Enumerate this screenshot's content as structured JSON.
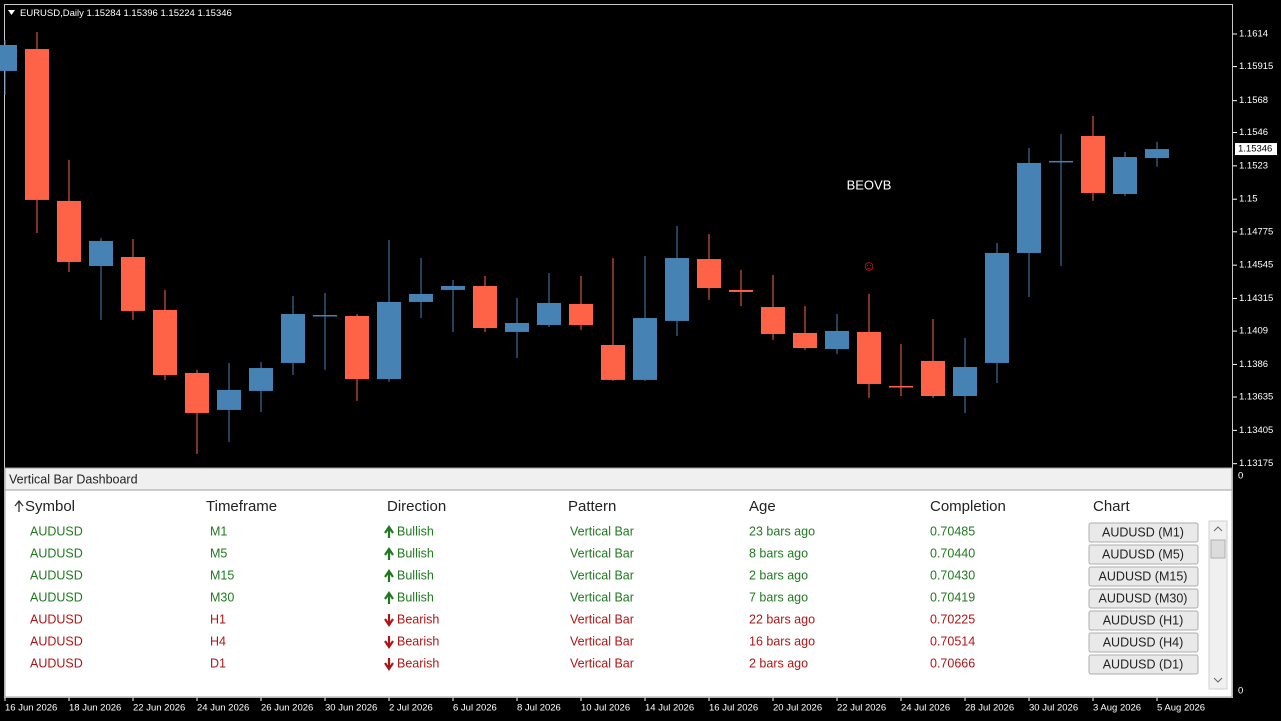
{
  "chart_data": {
    "type": "candlestick",
    "title": "EURUSD,Daily",
    "categories": [
      "16 Jun 2026",
      null,
      "18 Jun 2026",
      null,
      "22 Jun 2026",
      null,
      "24 Jun 2026",
      null,
      "26 Jun 2026",
      null,
      "30 Jun 2026",
      null,
      "2 Jul 2026",
      null,
      "6 Jul 2026",
      null,
      "8 Jul 2026",
      null,
      "10 Jul 2026",
      null,
      "14 Jul 2026",
      null,
      "16 Jul 2026",
      null,
      "20 Jul 2026",
      null,
      "22 Jul 2026",
      null,
      "24 Jul 2026",
      null,
      "28 Jul 2026",
      null,
      "30 Jul 2026",
      null,
      "3 Aug 2026",
      null,
      "5 Aug 2026"
    ],
    "open": [
      1.15885,
      1.16036,
      1.14988,
      1.14539,
      1.14601,
      1.14236,
      1.13801,
      1.13546,
      1.13677,
      1.1387,
      1.14194,
      1.14194,
      1.13759,
      1.14291,
      1.14374,
      1.14401,
      1.14084,
      1.14132,
      1.14277,
      1.13994,
      1.13753,
      1.1416,
      1.14587,
      1.14374,
      1.14256,
      1.14077,
      1.13966,
      1.14084,
      1.13711,
      1.13884,
      1.13642,
      1.1387,
      1.14629,
      1.15257,
      1.15436,
      1.15036,
      1.15284
    ],
    "high": [
      1.16099,
      1.16154,
      1.15271,
      1.14732,
      1.14725,
      1.14374,
      1.13822,
      1.1387,
      1.13877,
      1.14332,
      1.14353,
      1.14208,
      1.14719,
      1.14594,
      1.14443,
      1.1447,
      1.14318,
      1.14491,
      1.1447,
      1.14594,
      1.14608,
      1.14815,
      1.1476,
      1.14512,
      1.14477,
      1.14263,
      1.14208,
      1.14346,
      1.14001,
      1.14173,
      1.14042,
      1.14698,
      1.15353,
      1.1545,
      1.15574,
      1.15326,
      1.15396
    ],
    "low": [
      1.15719,
      1.14767,
      1.14498,
      1.14167,
      1.14167,
      1.13753,
      1.13242,
      1.13325,
      1.13532,
      1.13787,
      1.13822,
      1.13608,
      1.13739,
      1.1418,
      1.14084,
      1.14084,
      1.13904,
      1.14118,
      1.14098,
      1.13746,
      1.13746,
      1.14056,
      1.14305,
      1.14263,
      1.14029,
      1.1396,
      1.13932,
      1.13628,
      1.13642,
      1.13628,
      1.13525,
      1.13732,
      1.14325,
      1.14539,
      1.14988,
      1.15022,
      1.15224
    ],
    "close": [
      1.16064,
      1.14995,
      1.14567,
      1.14712,
      1.14229,
      1.13787,
      1.13525,
      1.13684,
      1.13835,
      1.14208,
      1.14201,
      1.13759,
      1.14291,
      1.14346,
      1.14401,
      1.14111,
      1.14146,
      1.14284,
      1.14132,
      1.13753,
      1.1418,
      1.14594,
      1.14387,
      1.1436,
      1.1407,
      1.13973,
      1.14091,
      1.13725,
      1.13704,
      1.13642,
      1.13842,
      1.14629,
      1.1525,
      1.15264,
      1.15043,
      1.15291,
      1.15346
    ],
    "up_color": "#4682b4",
    "down_color": "#ff6347",
    "ylim": [
      1.13159,
      1.1634
    ],
    "yticks": [
      1.1614,
      1.15915,
      1.1568,
      1.1546,
      1.1523,
      1.15,
      1.14775,
      1.14545,
      1.14315,
      1.1409,
      1.1386,
      1.13635,
      1.13405,
      1.13175
    ],
    "annotations": [
      "BEOVB",
      "☺"
    ],
    "panel_axis_labels": [
      "0",
      "0"
    ]
  },
  "dashboard": {
    "title": "Vertical Bar Dashboard",
    "columns": [
      "Symbol",
      "Timeframe",
      "Direction",
      "Pattern",
      "Age",
      "Completion",
      "Chart"
    ],
    "rows": [
      {
        "color": "#1f7a1f",
        "arrow": "up",
        "cells": [
          "AUDUSD",
          "M1",
          "Bullish",
          "Vertical Bar",
          "23 bars ago",
          "0.70485",
          "AUDUSD (M1)"
        ]
      },
      {
        "color": "#1f7a1f",
        "arrow": "up",
        "cells": [
          "AUDUSD",
          "M5",
          "Bullish",
          "Vertical Bar",
          "8 bars ago",
          "0.70440",
          "AUDUSD (M5)"
        ]
      },
      {
        "color": "#1f7a1f",
        "arrow": "up",
        "cells": [
          "AUDUSD",
          "M15",
          "Bullish",
          "Vertical Bar",
          "2 bars ago",
          "0.70430",
          "AUDUSD (M15)"
        ]
      },
      {
        "color": "#1f7a1f",
        "arrow": "up",
        "cells": [
          "AUDUSD",
          "M30",
          "Bullish",
          "Vertical Bar",
          "7 bars ago",
          "0.70419",
          "AUDUSD (M30)"
        ]
      },
      {
        "color": "#b01515",
        "arrow": "down",
        "cells": [
          "AUDUSD",
          "H1",
          "Bearish",
          "Vertical Bar",
          "22 bars ago",
          "0.70225",
          "AUDUSD (H1)"
        ]
      },
      {
        "color": "#b01515",
        "arrow": "down",
        "cells": [
          "AUDUSD",
          "H4",
          "Bearish",
          "Vertical Bar",
          "16 bars ago",
          "0.70514",
          "AUDUSD (H4)"
        ]
      },
      {
        "color": "#b01515",
        "arrow": "down",
        "cells": [
          "AUDUSD",
          "D1",
          "Bearish",
          "Vertical Bar",
          "2 bars ago",
          "0.70666",
          "AUDUSD (D1)"
        ]
      }
    ]
  }
}
